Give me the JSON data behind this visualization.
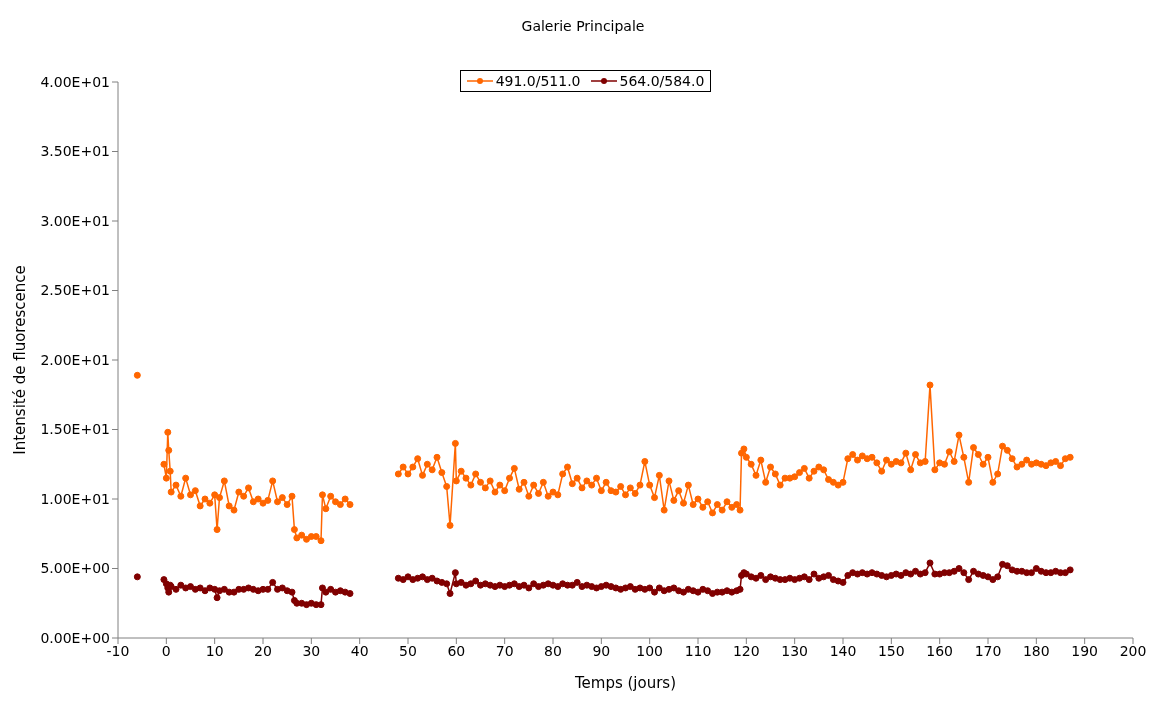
{
  "chart_data": {
    "type": "line",
    "title": "Galerie Principale",
    "xlabel": "Temps (jours)",
    "ylabel": "Intensité de fluorescence",
    "legend": "top",
    "marker": "circle",
    "line_style": "solid",
    "grid": false,
    "x": [
      -6,
      -3,
      -0.5,
      0,
      0.3,
      0.5,
      0.8,
      1,
      2,
      3,
      4,
      5,
      6,
      7,
      8,
      9,
      10,
      10.5,
      11,
      12,
      13,
      14,
      15,
      16,
      17,
      18,
      19,
      20,
      21,
      22,
      23,
      24,
      25,
      26,
      26.5,
      27,
      28,
      29,
      30,
      31,
      32,
      32.3,
      33,
      34,
      35,
      36,
      37,
      38,
      43,
      48,
      49,
      50,
      51,
      52,
      53,
      54,
      55,
      56,
      57,
      58,
      58.7,
      59.8,
      60,
      61,
      62,
      63,
      64,
      65,
      66,
      67,
      68,
      69,
      70,
      71,
      72,
      73,
      74,
      75,
      76,
      77,
      78,
      79,
      80,
      81,
      82,
      83,
      84,
      85,
      86,
      87,
      88,
      89,
      90,
      91,
      92,
      93,
      94,
      95,
      96,
      97,
      98,
      99,
      100,
      101,
      102,
      103,
      104,
      105,
      106,
      107,
      108,
      109,
      110,
      111,
      112,
      113,
      114,
      115,
      116,
      117,
      118,
      118.7,
      119,
      119.5,
      120,
      121,
      122,
      123,
      124,
      125,
      126,
      127,
      128,
      129,
      130,
      131,
      132,
      133,
      134,
      135,
      136,
      137,
      138,
      139,
      140,
      141,
      142,
      143,
      144,
      145,
      146,
      147,
      148,
      149,
      150,
      151,
      152,
      153,
      154,
      155,
      156,
      157,
      158,
      159,
      160,
      161,
      162,
      163,
      164,
      165,
      166,
      167,
      168,
      169,
      170,
      171,
      172,
      173,
      174,
      175,
      176,
      177,
      178,
      179,
      180,
      181,
      182,
      183,
      184,
      185,
      186,
      187
    ],
    "series": [
      {
        "name": "491.0/511.0",
        "color": "#ff6600",
        "values": [
          18.9,
          null,
          12.5,
          11.5,
          14.8,
          13.5,
          12.0,
          10.5,
          11.0,
          10.2,
          11.5,
          10.3,
          10.6,
          9.5,
          10.0,
          9.7,
          10.3,
          7.8,
          10.1,
          11.3,
          9.5,
          9.2,
          10.5,
          10.2,
          10.8,
          9.8,
          10.0,
          9.7,
          9.9,
          11.3,
          9.8,
          10.1,
          9.6,
          10.2,
          7.8,
          7.2,
          7.4,
          7.1,
          7.3,
          7.3,
          7.0,
          10.3,
          9.3,
          10.2,
          9.8,
          9.6,
          10.0,
          9.6,
          null,
          11.8,
          12.3,
          11.8,
          12.3,
          12.9,
          11.7,
          12.5,
          12.1,
          13.0,
          11.9,
          10.9,
          8.1,
          14.0,
          11.3,
          12.0,
          11.5,
          11.0,
          11.8,
          11.2,
          10.8,
          11.3,
          10.5,
          11.0,
          10.6,
          11.5,
          12.2,
          10.7,
          11.2,
          10.2,
          11.0,
          10.4,
          11.2,
          10.2,
          10.5,
          10.3,
          11.8,
          12.3,
          11.1,
          11.5,
          10.8,
          11.3,
          11.0,
          11.5,
          10.6,
          11.2,
          10.6,
          10.5,
          10.9,
          10.3,
          10.8,
          10.4,
          11.0,
          12.7,
          11.0,
          10.1,
          11.7,
          9.2,
          11.3,
          9.9,
          10.6,
          9.7,
          11.0,
          9.6,
          10.0,
          9.4,
          9.8,
          9.0,
          9.6,
          9.2,
          9.8,
          9.4,
          9.6,
          9.2,
          13.3,
          13.6,
          13.0,
          12.5,
          11.7,
          12.8,
          11.2,
          12.3,
          11.8,
          11.0,
          11.5,
          11.5,
          11.6,
          11.9,
          12.2,
          11.5,
          12.0,
          12.3,
          12.1,
          11.4,
          11.2,
          11.0,
          11.2,
          12.9,
          13.2,
          12.8,
          13.1,
          12.9,
          13.0,
          12.6,
          12.0,
          12.8,
          12.5,
          12.7,
          12.6,
          13.3,
          12.1,
          13.2,
          12.6,
          12.7,
          18.2,
          12.1,
          12.6,
          12.5,
          13.4,
          12.7,
          14.6,
          13.0,
          11.2,
          13.7,
          13.2,
          12.5,
          13.0,
          11.2,
          11.8,
          13.8,
          13.5,
          12.9,
          12.3,
          12.5,
          12.8,
          12.5,
          12.6,
          12.5,
          12.4,
          12.6,
          12.7,
          12.4,
          12.9,
          13.0
        ]
      },
      {
        "name": "564.0/584.0",
        "color": "#800000",
        "values": [
          4.4,
          null,
          4.2,
          3.9,
          3.6,
          3.3,
          3.8,
          3.7,
          3.5,
          3.8,
          3.6,
          3.7,
          3.5,
          3.6,
          3.4,
          3.6,
          3.5,
          2.9,
          3.4,
          3.5,
          3.3,
          3.3,
          3.5,
          3.5,
          3.6,
          3.5,
          3.4,
          3.5,
          3.5,
          4.0,
          3.5,
          3.6,
          3.4,
          3.3,
          2.7,
          2.5,
          2.5,
          2.4,
          2.5,
          2.4,
          2.4,
          3.6,
          3.3,
          3.5,
          3.3,
          3.4,
          3.3,
          3.2,
          null,
          4.3,
          4.2,
          4.4,
          4.2,
          4.3,
          4.4,
          4.2,
          4.3,
          4.1,
          4.0,
          3.9,
          3.2,
          4.7,
          3.9,
          4.0,
          3.8,
          3.9,
          4.1,
          3.8,
          3.9,
          3.8,
          3.7,
          3.8,
          3.7,
          3.8,
          3.9,
          3.7,
          3.8,
          3.6,
          3.9,
          3.7,
          3.8,
          3.9,
          3.8,
          3.7,
          3.9,
          3.8,
          3.8,
          4.0,
          3.7,
          3.8,
          3.7,
          3.6,
          3.7,
          3.8,
          3.7,
          3.6,
          3.5,
          3.6,
          3.7,
          3.5,
          3.6,
          3.5,
          3.6,
          3.3,
          3.6,
          3.4,
          3.5,
          3.6,
          3.4,
          3.3,
          3.5,
          3.4,
          3.3,
          3.5,
          3.4,
          3.2,
          3.3,
          3.3,
          3.4,
          3.3,
          3.4,
          3.5,
          4.5,
          4.7,
          4.6,
          4.4,
          4.3,
          4.5,
          4.2,
          4.4,
          4.3,
          4.2,
          4.2,
          4.3,
          4.2,
          4.3,
          4.4,
          4.2,
          4.6,
          4.3,
          4.4,
          4.5,
          4.2,
          4.1,
          4.0,
          4.5,
          4.7,
          4.6,
          4.7,
          4.6,
          4.7,
          4.6,
          4.5,
          4.4,
          4.5,
          4.6,
          4.5,
          4.7,
          4.6,
          4.8,
          4.6,
          4.7,
          5.4,
          4.6,
          4.6,
          4.7,
          4.7,
          4.8,
          5.0,
          4.7,
          4.2,
          4.8,
          4.6,
          4.5,
          4.4,
          4.2,
          4.4,
          5.3,
          5.2,
          4.9,
          4.8,
          4.8,
          4.7,
          4.7,
          5.0,
          4.8,
          4.7,
          4.7,
          4.8,
          4.7,
          4.7,
          4.9
        ]
      }
    ],
    "xlim": [
      -10,
      200
    ],
    "xticks": [
      -10,
      0,
      10,
      20,
      30,
      40,
      50,
      60,
      70,
      80,
      90,
      100,
      110,
      120,
      130,
      140,
      150,
      160,
      170,
      180,
      190,
      200
    ],
    "ylim": [
      0,
      40
    ],
    "yticks": [
      {
        "value": 0,
        "label": "0.00E+00"
      },
      {
        "value": 5,
        "label": "5.00E+00"
      },
      {
        "value": 10,
        "label": "1.00E+01"
      },
      {
        "value": 15,
        "label": "1.50E+01"
      },
      {
        "value": 20,
        "label": "2.00E+01"
      },
      {
        "value": 25,
        "label": "2.50E+01"
      },
      {
        "value": 30,
        "label": "3.00E+01"
      },
      {
        "value": 35,
        "label": "3.50E+01"
      },
      {
        "value": 40,
        "label": "4.00E+01"
      }
    ]
  }
}
